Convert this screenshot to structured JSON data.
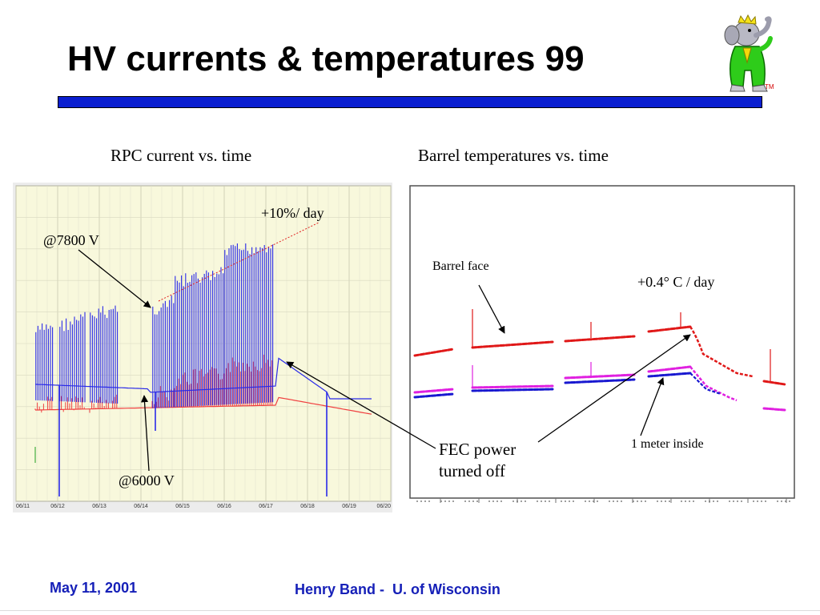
{
  "slide": {
    "title": "HV currents & temperatures 99",
    "footer_date": "May 11, 2001",
    "footer_author": "Henry Band -  U. of Wisconsin",
    "tm_mark": "TM",
    "title_bar_color": "#0a1fd0",
    "footer_color": "#1620b8",
    "mascot_icon": "elephant-mascot-icon"
  },
  "chart_data": [
    {
      "type": "line",
      "caption": "RPC current vs. time",
      "x_tick_labels": [
        "06/11",
        "06/12",
        "06/13",
        "06/14",
        "06/15",
        "06/16",
        "06/17",
        "06/18",
        "06/19",
        "06/20"
      ],
      "series_colors": [
        "#2a2ae8",
        "#f04040"
      ],
      "grid": true,
      "annotations": [
        "+10%/ day",
        "@7800 V",
        "@6000 V"
      ]
    },
    {
      "type": "scatter",
      "caption": "Barrel temperatures vs. time",
      "series_colors": [
        "#e01818",
        "#e020e0",
        "#1818d0"
      ],
      "annotations": [
        "Barrel face",
        "+0.4° C / day",
        "1 meter inside"
      ]
    }
  ],
  "shared_annotation": "FEC power\nturned off"
}
